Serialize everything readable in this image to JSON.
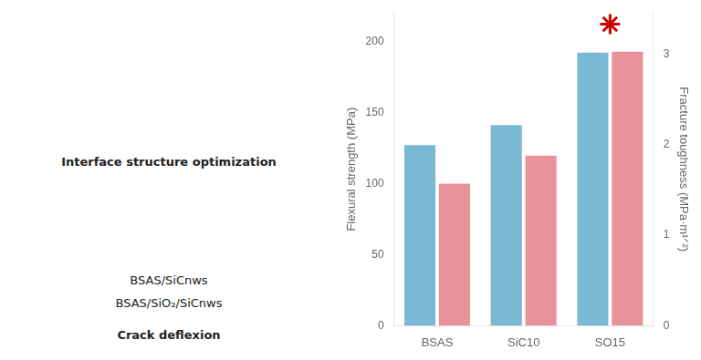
{
  "chart_data": {
    "type": "bar",
    "categories": [
      "BSAS",
      "SiC10",
      "SO15"
    ],
    "series": [
      {
        "color": "#7BB8D4",
        "values": [
          127,
          141,
          192
        ]
      },
      {
        "color": "#E8939A",
        "values": [
          1.57,
          1.88,
          3.03
        ],
        "axis": "y2"
      },
      {
        "type": "scatter",
        "marker": "star",
        "color": "#CC0000",
        "values": [
          null,
          null,
          212
        ]
      }
    ],
    "ylabel": "Flexural strength (MPa)",
    "y2label": "Fracture toughness (MPa·m¹ᐟ²)",
    "ylim": [
      0,
      220
    ],
    "yticks": [
      0,
      50,
      100,
      150,
      200
    ],
    "y2lim": [
      0,
      3.46
    ],
    "y2ticks": [
      0,
      1,
      2,
      3
    ],
    "grid": false,
    "annotations": [
      "Interface structure optimization",
      "BSAS/SiCnws",
      "BSAS/SiO₂/SiCnws",
      "Crack deflexion"
    ]
  }
}
